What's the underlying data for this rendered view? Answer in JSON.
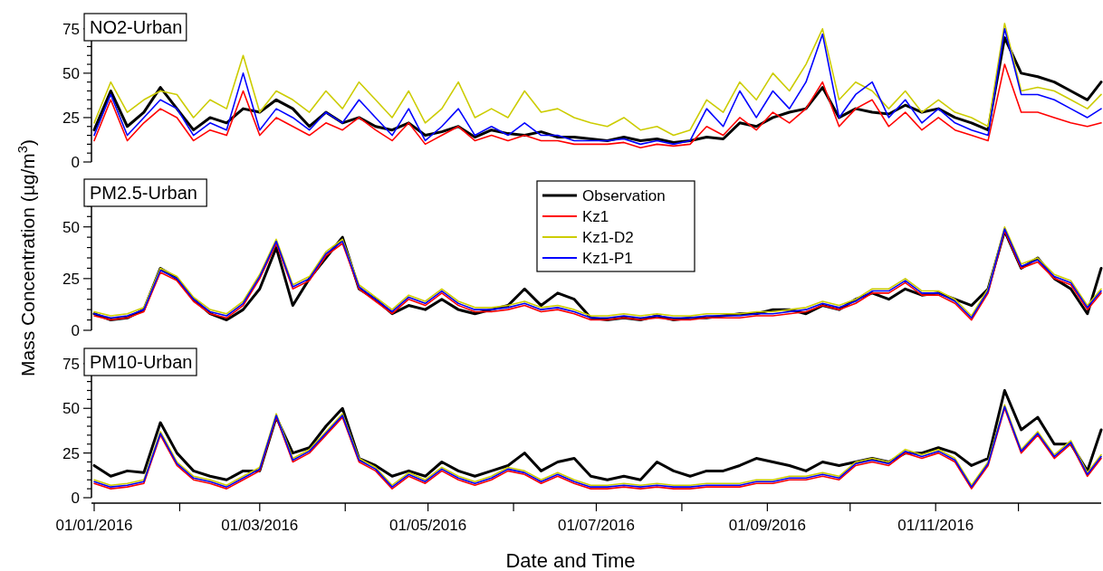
{
  "chart_data": [
    {
      "type": "line",
      "title": "NO2-Urban",
      "x": [
        "2016-01-01",
        "2016-01-07",
        "2016-01-13",
        "2016-01-19",
        "2016-01-25",
        "2016-01-31",
        "2016-02-06",
        "2016-02-12",
        "2016-02-18",
        "2016-02-24",
        "2016-03-01",
        "2016-03-07",
        "2016-03-13",
        "2016-03-19",
        "2016-03-25",
        "2016-03-31",
        "2016-04-06",
        "2016-04-12",
        "2016-04-18",
        "2016-04-24",
        "2016-04-30",
        "2016-05-06",
        "2016-05-12",
        "2016-05-18",
        "2016-05-24",
        "2016-05-30",
        "2016-06-05",
        "2016-06-11",
        "2016-06-17",
        "2016-06-23",
        "2016-06-29",
        "2016-07-05",
        "2016-07-11",
        "2016-07-17",
        "2016-07-23",
        "2016-07-29",
        "2016-08-04",
        "2016-08-10",
        "2016-08-16",
        "2016-08-22",
        "2016-08-28",
        "2016-09-03",
        "2016-09-09",
        "2016-09-15",
        "2016-09-21",
        "2016-09-27",
        "2016-10-03",
        "2016-10-09",
        "2016-10-15",
        "2016-10-21",
        "2016-10-27",
        "2016-11-02",
        "2016-11-08",
        "2016-11-14",
        "2016-11-20",
        "2016-11-26",
        "2016-12-02",
        "2016-12-08",
        "2016-12-14",
        "2016-12-20",
        "2016-12-26",
        "2016-12-31"
      ],
      "series": [
        {
          "color": "#000000",
          "values": [
            18,
            40,
            20,
            28,
            42,
            30,
            18,
            25,
            22,
            30,
            28,
            35,
            30,
            20,
            28,
            22,
            25,
            20,
            18,
            22,
            15,
            17,
            20,
            14,
            18,
            16,
            15,
            17,
            14,
            14,
            13,
            12,
            14,
            12,
            13,
            11,
            12,
            14,
            13,
            22,
            20,
            25,
            28,
            30,
            42,
            25,
            30,
            28,
            27,
            32,
            28,
            30,
            25,
            22,
            18,
            70,
            50,
            48,
            45,
            40,
            35,
            45
          ]
        },
        {
          "color": "#ff0000",
          "values": [
            12,
            35,
            12,
            22,
            30,
            25,
            12,
            18,
            15,
            40,
            15,
            25,
            20,
            15,
            22,
            18,
            25,
            18,
            12,
            22,
            10,
            15,
            20,
            12,
            15,
            12,
            15,
            12,
            12,
            10,
            10,
            10,
            11,
            8,
            10,
            9,
            10,
            20,
            15,
            25,
            18,
            28,
            22,
            30,
            45,
            20,
            30,
            35,
            20,
            28,
            18,
            25,
            18,
            15,
            12,
            55,
            28,
            28,
            25,
            22,
            20,
            22
          ]
        },
        {
          "color": "#cccc00",
          "values": [
            22,
            45,
            28,
            35,
            40,
            38,
            25,
            35,
            30,
            60,
            28,
            40,
            35,
            28,
            40,
            30,
            45,
            35,
            25,
            40,
            22,
            30,
            45,
            25,
            30,
            25,
            40,
            28,
            30,
            25,
            22,
            20,
            25,
            18,
            20,
            15,
            18,
            35,
            28,
            45,
            35,
            50,
            40,
            55,
            75,
            35,
            45,
            40,
            30,
            40,
            28,
            35,
            28,
            25,
            20,
            78,
            40,
            42,
            40,
            35,
            30,
            38
          ]
        },
        {
          "color": "#0000ff",
          "values": [
            15,
            38,
            15,
            25,
            35,
            30,
            15,
            22,
            18,
            50,
            18,
            30,
            25,
            18,
            28,
            22,
            35,
            25,
            15,
            30,
            12,
            20,
            30,
            15,
            20,
            15,
            22,
            15,
            15,
            12,
            12,
            12,
            13,
            10,
            12,
            10,
            12,
            30,
            20,
            40,
            25,
            40,
            30,
            45,
            72,
            25,
            38,
            45,
            25,
            35,
            22,
            30,
            22,
            18,
            15,
            75,
            38,
            38,
            35,
            30,
            25,
            30
          ]
        }
      ],
      "xlim": [
        "2016-01-01",
        "2016-12-31"
      ],
      "ylim": [
        0,
        80
      ],
      "yticks": [
        0,
        {
          "value": 5,
          "label": null
        },
        {
          "value": 10,
          "label": null
        },
        {
          "value": 15,
          "label": null
        },
        {
          "value": 20,
          "label": null
        },
        25,
        {
          "value": 30,
          "label": null
        },
        {
          "value": 35,
          "label": null
        },
        {
          "value": 40,
          "label": null
        },
        {
          "value": 45,
          "label": null
        },
        50,
        {
          "value": 55,
          "label": null
        },
        {
          "value": 60,
          "label": null
        },
        {
          "value": 65,
          "label": null
        },
        {
          "value": 70,
          "label": null
        },
        75,
        {
          "value": 80,
          "label": null
        }
      ],
      "tick_labels": "y",
      "legend": false
    },
    {
      "type": "line",
      "title": "PM2.5-Urban",
      "ylabel": "Mass Concentration (µg/m$^{3}$)",
      "x": [
        "2016-01-01",
        "2016-01-07",
        "2016-01-13",
        "2016-01-19",
        "2016-01-25",
        "2016-01-31",
        "2016-02-06",
        "2016-02-12",
        "2016-02-18",
        "2016-02-24",
        "2016-03-01",
        "2016-03-07",
        "2016-03-13",
        "2016-03-19",
        "2016-03-25",
        "2016-03-31",
        "2016-04-06",
        "2016-04-12",
        "2016-04-18",
        "2016-04-24",
        "2016-04-30",
        "2016-05-06",
        "2016-05-12",
        "2016-05-18",
        "2016-05-24",
        "2016-05-30",
        "2016-06-05",
        "2016-06-11",
        "2016-06-17",
        "2016-06-23",
        "2016-06-29",
        "2016-07-05",
        "2016-07-11",
        "2016-07-17",
        "2016-07-23",
        "2016-07-29",
        "2016-08-04",
        "2016-08-10",
        "2016-08-16",
        "2016-08-22",
        "2016-08-28",
        "2016-09-03",
        "2016-09-09",
        "2016-09-15",
        "2016-09-21",
        "2016-09-27",
        "2016-10-03",
        "2016-10-09",
        "2016-10-15",
        "2016-10-21",
        "2016-10-27",
        "2016-11-02",
        "2016-11-08",
        "2016-11-14",
        "2016-11-20",
        "2016-11-26",
        "2016-12-02",
        "2016-12-08",
        "2016-12-14",
        "2016-12-20",
        "2016-12-26",
        "2016-12-31"
      ],
      "series": [
        {
          "name": "Observation",
          "color": "#000000",
          "values": [
            8,
            5,
            6,
            10,
            30,
            25,
            15,
            8,
            5,
            10,
            20,
            40,
            12,
            25,
            35,
            45,
            20,
            15,
            8,
            12,
            10,
            15,
            10,
            8,
            10,
            12,
            20,
            12,
            18,
            15,
            6,
            5,
            6,
            5,
            7,
            5,
            6,
            6,
            7,
            8,
            8,
            10,
            10,
            8,
            12,
            10,
            15,
            18,
            15,
            20,
            17,
            18,
            15,
            12,
            20,
            48,
            30,
            35,
            25,
            20,
            8,
            30
          ]
        },
        {
          "name": "Kz1",
          "color": "#ff0000",
          "values": [
            7,
            5,
            6,
            9,
            28,
            24,
            14,
            8,
            6,
            12,
            25,
            42,
            20,
            24,
            36,
            42,
            20,
            14,
            8,
            15,
            12,
            18,
            12,
            9,
            9,
            10,
            12,
            9,
            10,
            8,
            5,
            5,
            6,
            5,
            6,
            5,
            5,
            6,
            6,
            6,
            7,
            7,
            8,
            9,
            12,
            10,
            13,
            18,
            18,
            23,
            17,
            17,
            13,
            5,
            18,
            48,
            30,
            33,
            25,
            22,
            10,
            18
          ]
        },
        {
          "name": "Kz1-D2",
          "color": "#cccc00",
          "values": [
            9,
            7,
            8,
            11,
            30,
            26,
            16,
            10,
            8,
            14,
            27,
            44,
            22,
            26,
            38,
            44,
            22,
            16,
            10,
            17,
            14,
            20,
            14,
            11,
            11,
            12,
            14,
            11,
            12,
            10,
            7,
            7,
            8,
            7,
            8,
            7,
            7,
            8,
            8,
            8,
            9,
            9,
            10,
            11,
            14,
            12,
            15,
            20,
            20,
            25,
            19,
            19,
            15,
            7,
            20,
            50,
            32,
            35,
            27,
            24,
            12,
            20
          ]
        },
        {
          "name": "Kz1-P1",
          "color": "#0000ff",
          "values": [
            8,
            6,
            7,
            10,
            29,
            25,
            15,
            9,
            7,
            13,
            26,
            43,
            21,
            25,
            37,
            43,
            21,
            15,
            9,
            16,
            13,
            19,
            13,
            10,
            10,
            11,
            13,
            10,
            11,
            9,
            6,
            6,
            7,
            6,
            7,
            6,
            6,
            7,
            7,
            7,
            8,
            8,
            9,
            10,
            13,
            11,
            14,
            19,
            19,
            24,
            18,
            18,
            14,
            6,
            19,
            49,
            31,
            34,
            26,
            23,
            11,
            19
          ]
        }
      ],
      "xlim": [
        "2016-01-01",
        "2016-12-31"
      ],
      "ylim": [
        0,
        70
      ],
      "yticks": [
        0,
        {
          "value": 5,
          "label": null
        },
        {
          "value": 10,
          "label": null
        },
        {
          "value": 15,
          "label": null
        },
        {
          "value": 20,
          "label": null
        },
        25,
        {
          "value": 30,
          "label": null
        },
        {
          "value": 35,
          "label": null
        },
        {
          "value": 40,
          "label": null
        },
        {
          "value": 45,
          "label": null
        },
        50,
        {
          "value": 55,
          "label": null
        },
        {
          "value": 60,
          "label": null
        },
        {
          "value": 65,
          "label": null
        },
        {
          "value": 70,
          "label": null
        }
      ],
      "tick_labels": "y",
      "legend": "top"
    },
    {
      "type": "line",
      "title": "PM10-Urban",
      "xlabel": "Date and Time",
      "x": [
        "2016-01-01",
        "2016-01-07",
        "2016-01-13",
        "2016-01-19",
        "2016-01-25",
        "2016-01-31",
        "2016-02-06",
        "2016-02-12",
        "2016-02-18",
        "2016-02-24",
        "2016-03-01",
        "2016-03-07",
        "2016-03-13",
        "2016-03-19",
        "2016-03-25",
        "2016-03-31",
        "2016-04-06",
        "2016-04-12",
        "2016-04-18",
        "2016-04-24",
        "2016-04-30",
        "2016-05-06",
        "2016-05-12",
        "2016-05-18",
        "2016-05-24",
        "2016-05-30",
        "2016-06-05",
        "2016-06-11",
        "2016-06-17",
        "2016-06-23",
        "2016-06-29",
        "2016-07-05",
        "2016-07-11",
        "2016-07-17",
        "2016-07-23",
        "2016-07-29",
        "2016-08-04",
        "2016-08-10",
        "2016-08-16",
        "2016-08-22",
        "2016-08-28",
        "2016-09-03",
        "2016-09-09",
        "2016-09-15",
        "2016-09-21",
        "2016-09-27",
        "2016-10-03",
        "2016-10-09",
        "2016-10-15",
        "2016-10-21",
        "2016-10-27",
        "2016-11-02",
        "2016-11-08",
        "2016-11-14",
        "2016-11-20",
        "2016-11-26",
        "2016-12-02",
        "2016-12-08",
        "2016-12-14",
        "2016-12-20",
        "2016-12-26",
        "2016-12-31"
      ],
      "series": [
        {
          "color": "#000000",
          "values": [
            18,
            12,
            15,
            14,
            42,
            25,
            15,
            12,
            10,
            15,
            15,
            45,
            25,
            28,
            40,
            50,
            22,
            18,
            12,
            15,
            12,
            20,
            15,
            12,
            15,
            18,
            25,
            15,
            20,
            22,
            12,
            10,
            12,
            10,
            20,
            15,
            12,
            15,
            15,
            18,
            22,
            20,
            18,
            15,
            20,
            18,
            20,
            22,
            20,
            25,
            25,
            28,
            25,
            18,
            22,
            60,
            38,
            45,
            30,
            30,
            15,
            38
          ]
        },
        {
          "color": "#ff0000",
          "values": [
            8,
            5,
            6,
            8,
            35,
            18,
            10,
            8,
            5,
            10,
            15,
            45,
            20,
            25,
            35,
            45,
            20,
            15,
            5,
            12,
            8,
            15,
            10,
            7,
            10,
            15,
            13,
            8,
            12,
            8,
            5,
            5,
            6,
            5,
            6,
            5,
            5,
            6,
            6,
            6,
            8,
            8,
            10,
            10,
            12,
            10,
            18,
            20,
            18,
            25,
            22,
            25,
            20,
            5,
            18,
            50,
            25,
            35,
            22,
            30,
            12,
            22
          ]
        },
        {
          "color": "#cccc00",
          "values": [
            10,
            7,
            8,
            10,
            37,
            20,
            12,
            10,
            7,
            12,
            17,
            47,
            22,
            27,
            37,
            47,
            22,
            17,
            7,
            14,
            10,
            17,
            12,
            9,
            12,
            17,
            15,
            10,
            14,
            10,
            7,
            7,
            8,
            7,
            8,
            7,
            7,
            8,
            8,
            8,
            10,
            10,
            12,
            12,
            14,
            12,
            20,
            22,
            20,
            27,
            24,
            27,
            22,
            7,
            20,
            52,
            27,
            37,
            24,
            32,
            14,
            24
          ]
        },
        {
          "color": "#0000ff",
          "values": [
            9,
            6,
            7,
            9,
            36,
            19,
            11,
            9,
            6,
            11,
            16,
            46,
            21,
            26,
            36,
            46,
            21,
            16,
            6,
            13,
            9,
            16,
            11,
            8,
            11,
            16,
            14,
            9,
            13,
            9,
            6,
            6,
            7,
            6,
            7,
            6,
            6,
            7,
            7,
            7,
            9,
            9,
            11,
            11,
            13,
            11,
            19,
            21,
            19,
            26,
            23,
            26,
            21,
            6,
            19,
            51,
            26,
            36,
            23,
            31,
            13,
            23
          ]
        }
      ],
      "xlim": [
        "2016-01-01",
        "2016-12-31"
      ],
      "ylim": [
        0,
        80
      ],
      "xticks": [
        {
          "value": "2016-01-01",
          "label": "01/01/2016"
        },
        {
          "value": "2016-02-01",
          "label": null
        },
        {
          "value": "2016-03-01",
          "label": "01/03/2016"
        },
        {
          "value": "2016-04-01",
          "label": null
        },
        {
          "value": "2016-05-01",
          "label": "01/05/2016"
        },
        {
          "value": "2016-06-01",
          "label": null
        },
        {
          "value": "2016-07-01",
          "label": "01/07/2016"
        },
        {
          "value": "2016-08-01",
          "label": null
        },
        {
          "value": "2016-09-01",
          "label": "01/09/2016"
        },
        {
          "value": "2016-10-01",
          "label": null
        },
        {
          "value": "2016-11-01",
          "label": "01/11/2016"
        },
        {
          "value": "2016-12-01",
          "label": null
        }
      ],
      "yticks": [
        0,
        {
          "value": 5,
          "label": null
        },
        {
          "value": 10,
          "label": null
        },
        {
          "value": 15,
          "label": null
        },
        {
          "value": 20,
          "label": null
        },
        25,
        {
          "value": 30,
          "label": null
        },
        {
          "value": 35,
          "label": null
        },
        {
          "value": 40,
          "label": null
        },
        {
          "value": 45,
          "label": null
        },
        50,
        {
          "value": 55,
          "label": null
        },
        {
          "value": 60,
          "label": null
        },
        {
          "value": 65,
          "label": null
        },
        {
          "value": 70,
          "label": null
        },
        75,
        {
          "value": 80,
          "label": null
        }
      ],
      "legend": false
    }
  ]
}
